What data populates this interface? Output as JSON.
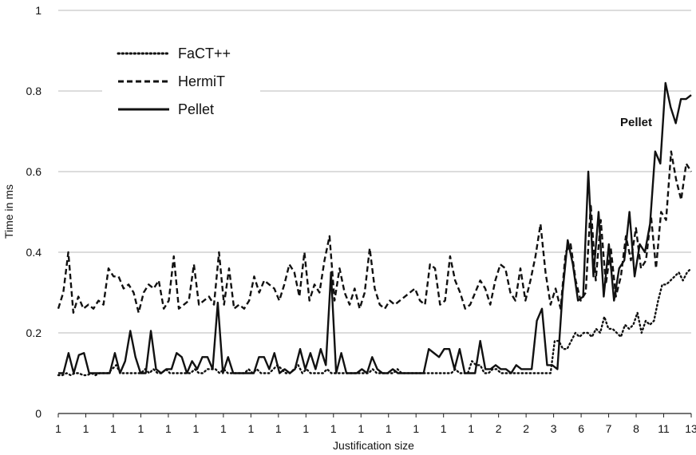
{
  "chart_data": {
    "type": "line",
    "title": "",
    "xlabel": "Justification size",
    "ylabel": "Time in ms",
    "ylim": [
      0,
      1
    ],
    "y_ticks": [
      "0",
      "0.2",
      "0.4",
      "0.6",
      "0.8",
      "1"
    ],
    "grid": "horizontal",
    "legend_position": "top-left",
    "annotation": "Pellet",
    "x_ticks": [
      "1",
      "1",
      "1",
      "1",
      "1",
      "1",
      "1",
      "1",
      "1",
      "1",
      "1",
      "1",
      "1",
      "1",
      "1",
      "1",
      "2",
      "2",
      "3",
      "6",
      "7",
      "8",
      "11",
      "13"
    ],
    "series": [
      {
        "name": "FaCT++",
        "style": "dotted",
        "values": [
          0.095,
          0.095,
          0.1,
          0.095,
          0.1,
          0.1,
          0.095,
          0.095,
          0.1,
          0.095,
          0.1,
          0.1,
          0.1,
          0.11,
          0.12,
          0.1,
          0.1,
          0.1,
          0.1,
          0.1,
          0.1,
          0.11,
          0.1,
          0.11,
          0.1,
          0.1,
          0.11,
          0.1,
          0.1,
          0.1,
          0.1,
          0.1,
          0.1,
          0.11,
          0.1,
          0.1,
          0.11,
          0.11,
          0.11,
          0.1,
          0.11,
          0.1,
          0.1,
          0.1,
          0.1,
          0.1,
          0.11,
          0.1,
          0.11,
          0.1,
          0.1,
          0.1,
          0.11,
          0.12,
          0.11,
          0.1,
          0.1,
          0.11,
          0.12,
          0.1,
          0.11,
          0.1,
          0.1,
          0.1,
          0.1,
          0.11,
          0.1,
          0.1,
          0.1,
          0.1,
          0.1,
          0.1,
          0.1,
          0.1,
          0.1,
          0.1,
          0.11,
          0.1,
          0.1,
          0.1,
          0.1,
          0.1,
          0.11,
          0.1,
          0.1,
          0.1,
          0.1,
          0.1,
          0.1,
          0.1,
          0.1,
          0.1,
          0.1,
          0.1,
          0.1,
          0.1,
          0.11,
          0.1,
          0.1,
          0.1,
          0.13,
          0.12,
          0.12,
          0.1,
          0.1,
          0.11,
          0.11,
          0.1,
          0.1,
          0.1,
          0.1,
          0.1,
          0.1,
          0.1,
          0.1,
          0.1,
          0.1,
          0.1,
          0.1,
          0.1,
          0.18,
          0.18,
          0.16,
          0.16,
          0.18,
          0.2,
          0.19,
          0.2,
          0.2,
          0.19,
          0.21,
          0.2,
          0.24,
          0.21,
          0.21,
          0.2,
          0.19,
          0.22,
          0.21,
          0.22,
          0.25,
          0.2,
          0.23,
          0.22,
          0.23,
          0.28,
          0.32,
          0.32,
          0.33,
          0.34,
          0.35,
          0.33,
          0.35,
          0.36
        ]
      },
      {
        "name": "HermiT",
        "style": "dashed",
        "values": [
          0.26,
          0.3,
          0.4,
          0.25,
          0.29,
          0.26,
          0.27,
          0.26,
          0.28,
          0.27,
          0.36,
          0.34,
          0.34,
          0.31,
          0.32,
          0.3,
          0.25,
          0.3,
          0.32,
          0.31,
          0.33,
          0.26,
          0.28,
          0.39,
          0.26,
          0.27,
          0.28,
          0.37,
          0.27,
          0.28,
          0.29,
          0.27,
          0.4,
          0.27,
          0.36,
          0.26,
          0.27,
          0.26,
          0.28,
          0.34,
          0.3,
          0.33,
          0.32,
          0.31,
          0.28,
          0.32,
          0.37,
          0.35,
          0.29,
          0.4,
          0.28,
          0.32,
          0.3,
          0.38,
          0.44,
          0.28,
          0.36,
          0.3,
          0.27,
          0.31,
          0.26,
          0.3,
          0.41,
          0.31,
          0.27,
          0.26,
          0.28,
          0.27,
          0.28,
          0.29,
          0.3,
          0.31,
          0.28,
          0.27,
          0.37,
          0.36,
          0.27,
          0.28,
          0.39,
          0.33,
          0.3,
          0.26,
          0.27,
          0.3,
          0.33,
          0.31,
          0.27,
          0.33,
          0.37,
          0.36,
          0.3,
          0.28,
          0.36,
          0.28,
          0.33,
          0.39,
          0.47,
          0.35,
          0.27,
          0.31,
          0.26,
          0.4,
          0.42,
          0.33,
          0.28,
          0.3,
          0.52,
          0.33,
          0.48,
          0.32,
          0.41,
          0.29,
          0.34,
          0.44,
          0.38,
          0.46,
          0.36,
          0.38,
          0.49,
          0.36,
          0.5,
          0.48,
          0.65,
          0.58,
          0.53,
          0.62,
          0.6
        ]
      },
      {
        "name": "Pellet",
        "style": "solid",
        "values": [
          0.1,
          0.1,
          0.15,
          0.1,
          0.145,
          0.15,
          0.1,
          0.1,
          0.1,
          0.1,
          0.1,
          0.15,
          0.1,
          0.13,
          0.205,
          0.14,
          0.1,
          0.1,
          0.205,
          0.11,
          0.1,
          0.11,
          0.11,
          0.15,
          0.14,
          0.1,
          0.13,
          0.11,
          0.14,
          0.14,
          0.11,
          0.275,
          0.1,
          0.14,
          0.1,
          0.1,
          0.1,
          0.1,
          0.1,
          0.14,
          0.14,
          0.11,
          0.15,
          0.1,
          0.11,
          0.1,
          0.11,
          0.16,
          0.11,
          0.15,
          0.11,
          0.16,
          0.12,
          0.35,
          0.1,
          0.15,
          0.1,
          0.1,
          0.1,
          0.11,
          0.1,
          0.14,
          0.11,
          0.1,
          0.1,
          0.11,
          0.1,
          0.1,
          0.1,
          0.1,
          0.1,
          0.1,
          0.16,
          0.15,
          0.14,
          0.16,
          0.16,
          0.11,
          0.16,
          0.1,
          0.1,
          0.1,
          0.18,
          0.11,
          0.11,
          0.12,
          0.11,
          0.11,
          0.1,
          0.12,
          0.11,
          0.11,
          0.11,
          0.23,
          0.26,
          0.12,
          0.12,
          0.11,
          0.3,
          0.43,
          0.37,
          0.28,
          0.29,
          0.6,
          0.34,
          0.5,
          0.29,
          0.42,
          0.28,
          0.36,
          0.38,
          0.5,
          0.34,
          0.42,
          0.4,
          0.47,
          0.65,
          0.62,
          0.82,
          0.76,
          0.72,
          0.78,
          0.78,
          0.79
        ]
      }
    ]
  }
}
